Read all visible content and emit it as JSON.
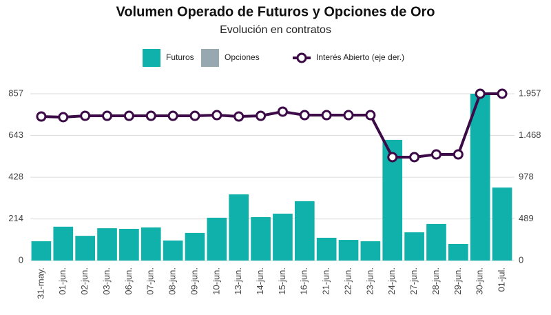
{
  "chart_data": {
    "type": "bar",
    "title": "Volumen Operado de Futuros y Opciones de Oro",
    "subtitle": "Evolución en contratos",
    "categories": [
      "31-may.",
      "01-jun.",
      "02-jun.",
      "03-jun.",
      "06-jun.",
      "07-jun.",
      "08-jun.",
      "09-jun.",
      "10-jun.",
      "13-jun.",
      "14-jun.",
      "15-jun.",
      "16-jun.",
      "21-jun.",
      "22-jun.",
      "23-jun.",
      "24-jun.",
      "27-jun.",
      "28-jun.",
      "29-jun.",
      "30-jun.",
      "01-jul."
    ],
    "series": [
      {
        "name": "Futuros",
        "color": "#0fb1aa",
        "values": [
          99,
          174,
          127,
          166,
          163,
          170,
          103,
          142,
          220,
          340,
          223,
          241,
          305,
          117,
          106,
          99,
          620,
          145,
          188,
          85,
          857,
          375
        ]
      },
      {
        "name": "Opciones",
        "color": "#98a8b1",
        "values": [
          0,
          0,
          0,
          0,
          0,
          0,
          0,
          0,
          0,
          0,
          0,
          0,
          0,
          0,
          0,
          0,
          0,
          0,
          0,
          0,
          0,
          0
        ]
      },
      {
        "name": "Interés Abierto (eje der.)",
        "color": "#3b0a47",
        "axis": "y2",
        "type": "line",
        "values": [
          1690,
          1682,
          1698,
          1698,
          1698,
          1698,
          1698,
          1698,
          1706,
          1690,
          1698,
          1747,
          1706,
          1706,
          1706,
          1706,
          1213,
          1213,
          1245,
          1245,
          1957,
          1957
        ]
      }
    ],
    "ylim": [
      0,
      857
    ],
    "yticks": [
      0,
      214,
      428,
      643,
      857
    ],
    "y2lim": [
      0,
      1957
    ],
    "y2ticks": [
      0,
      489,
      978,
      {
        "value": 1468,
        "label": "1.468"
      },
      {
        "value": 1957,
        "label": "1.957"
      }
    ],
    "grid": true,
    "stacked": true
  }
}
